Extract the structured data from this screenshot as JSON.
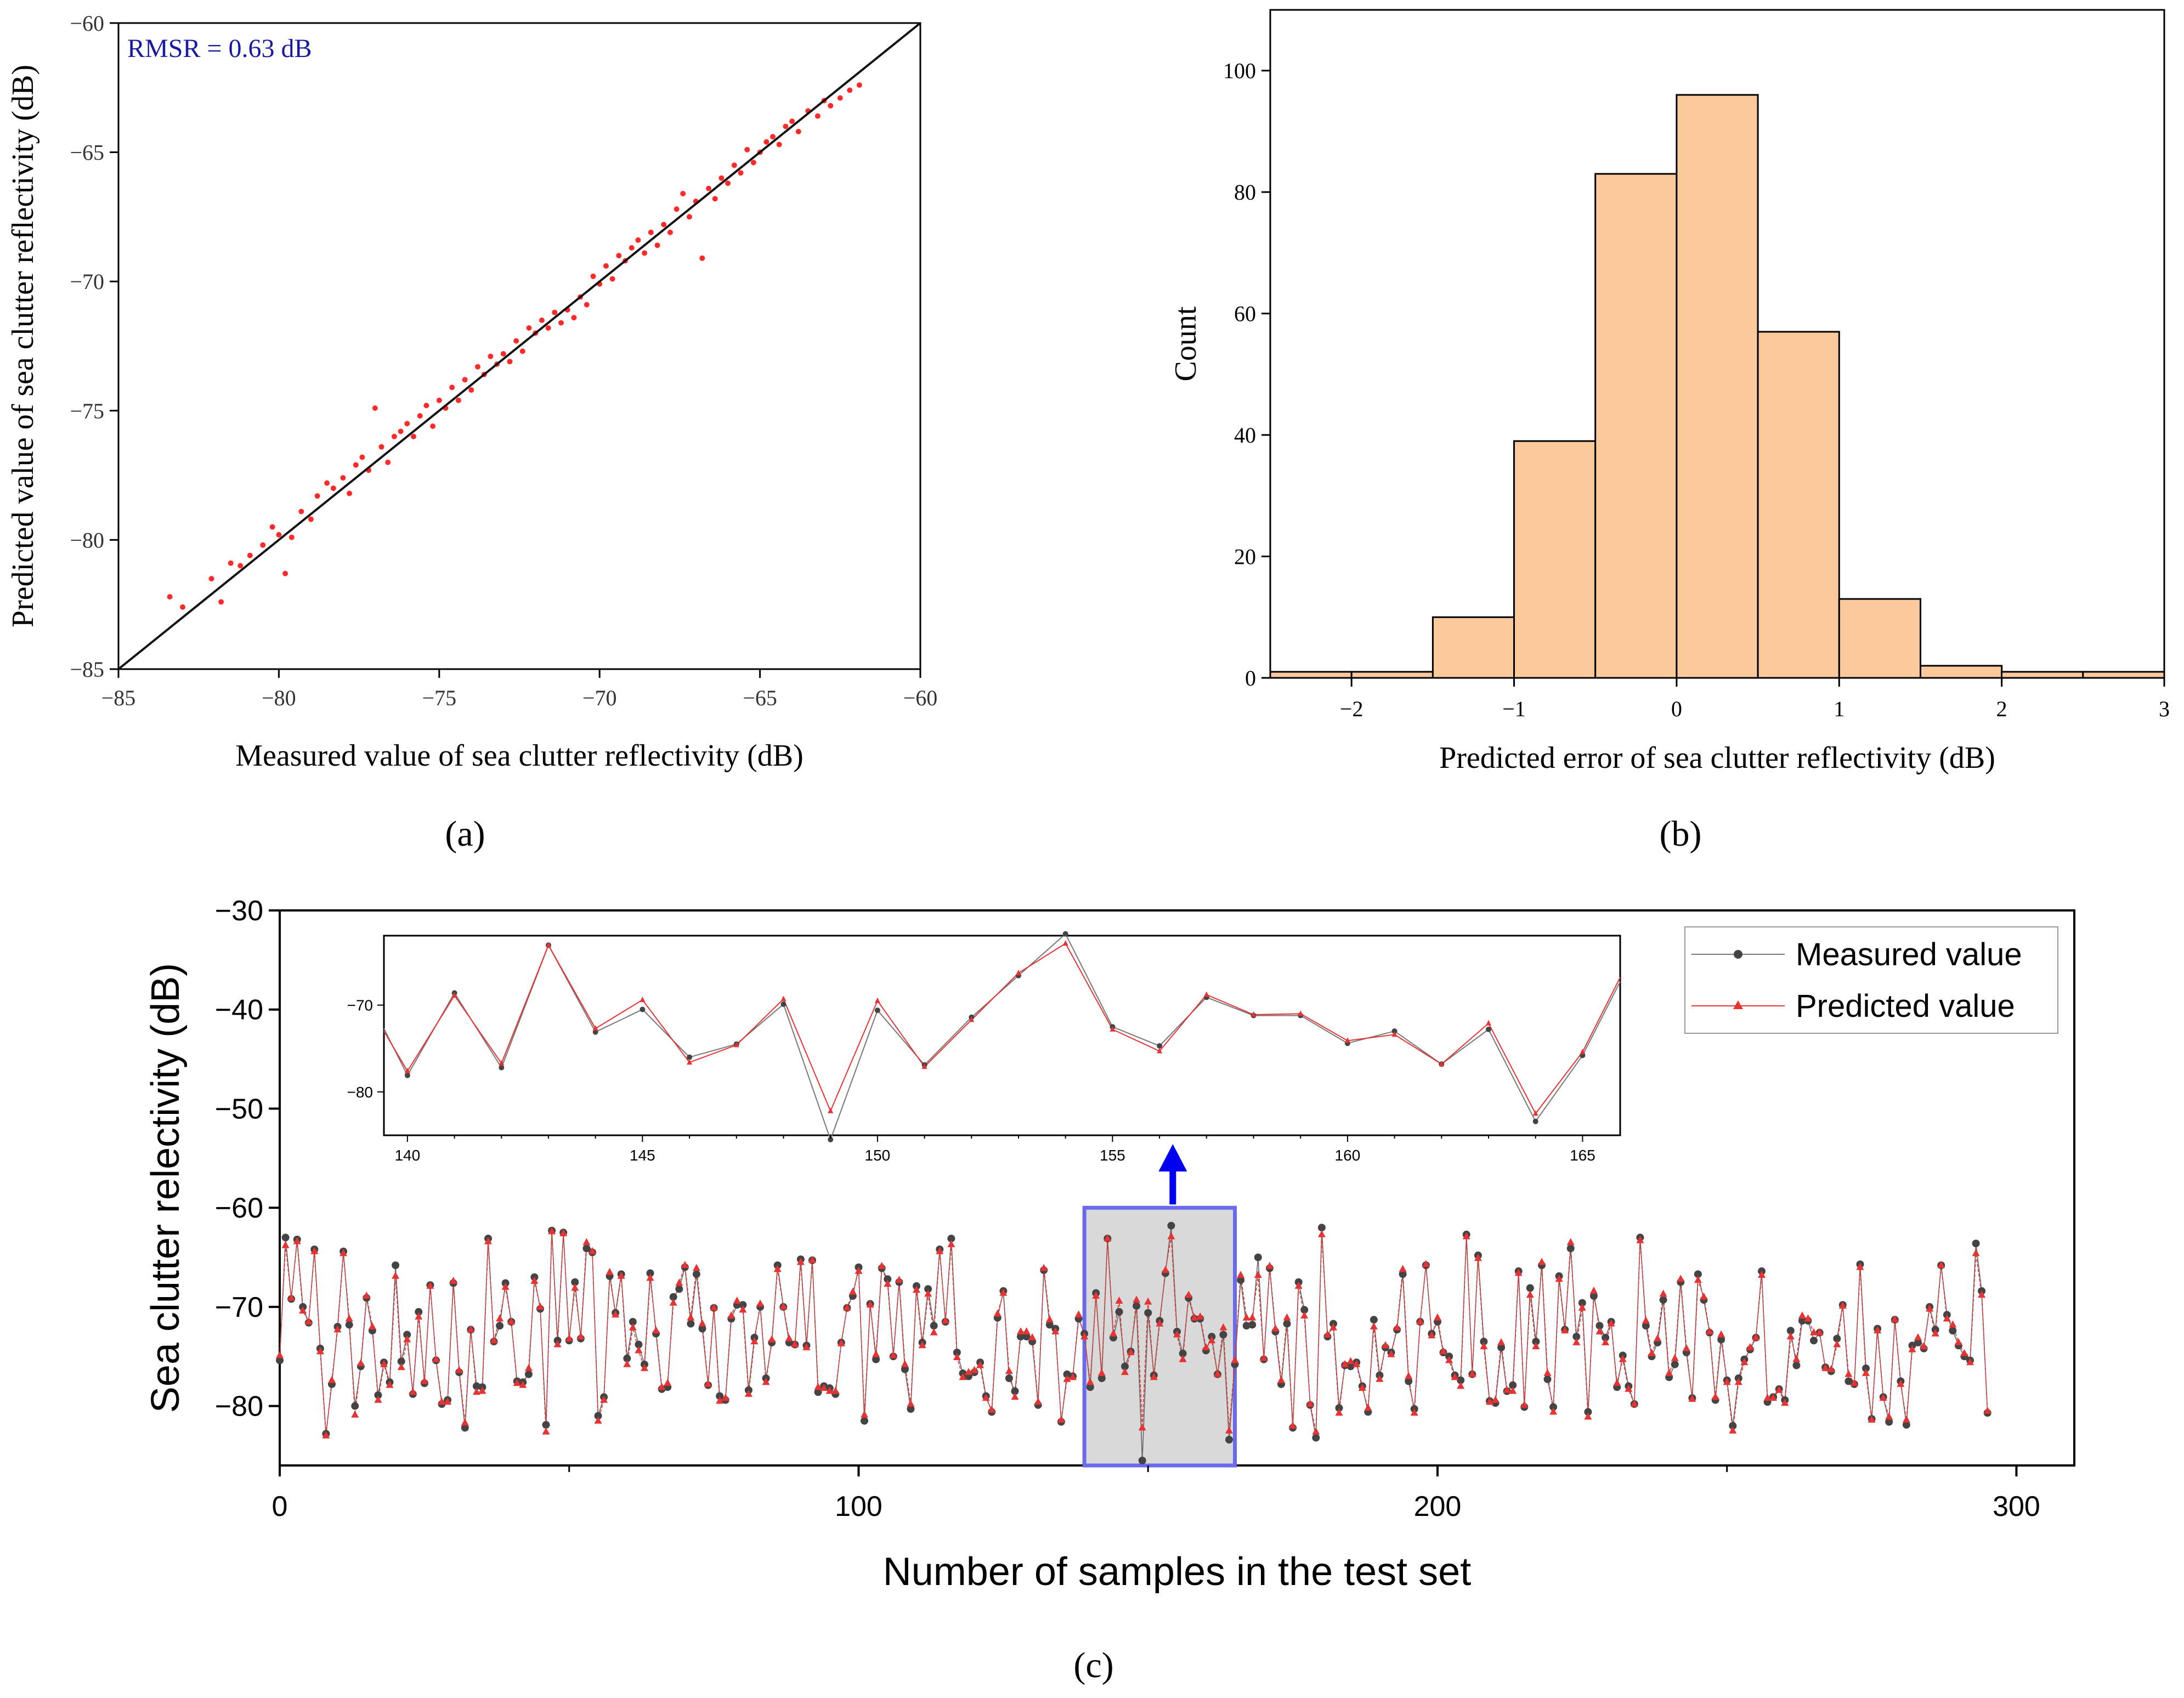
{
  "colors": {
    "scatter_point": "#ff2a2a",
    "fit_line": "#111111",
    "annotation": "#1a1aa0",
    "hist_fill": "#f9c89b",
    "hist_edge": "#000000",
    "measured": "#444444",
    "predicted": "#e63333",
    "highlight_box": "#6a6aee",
    "highlight_fill": "#d9d9d9",
    "arrow": "#0000ee"
  },
  "captions": [
    "(a)",
    "(b)",
    "(c)"
  ],
  "chart_data": [
    {
      "type": "scatter",
      "title": "",
      "xlabel": "Measured value of sea clutter reflectivity (dB)",
      "ylabel": "Predicted value of sea clutter reflectivity (dB)",
      "xlim": [
        -85,
        -60
      ],
      "ylim": [
        -85,
        -60
      ],
      "xticks": [
        -85,
        -80,
        -75,
        -70,
        -65,
        -60
      ],
      "yticks": [
        -85,
        -80,
        -75,
        -70,
        -65,
        -60
      ],
      "tick_labels": [
        "−85",
        "−80",
        "−75",
        "−70",
        "−65",
        "−60"
      ],
      "annotation": "RMSR = 0.63 dB",
      "reference_line": [
        [
          -85,
          -85
        ],
        [
          -60,
          -60
        ]
      ],
      "points": [
        [
          -83.4,
          -82.2
        ],
        [
          -83.0,
          -82.6
        ],
        [
          -82.1,
          -81.5
        ],
        [
          -81.8,
          -82.4
        ],
        [
          -81.5,
          -80.9
        ],
        [
          -81.2,
          -81.0
        ],
        [
          -80.9,
          -80.6
        ],
        [
          -80.5,
          -80.2
        ],
        [
          -80.2,
          -79.5
        ],
        [
          -80.0,
          -79.8
        ],
        [
          -79.8,
          -81.3
        ],
        [
          -79.6,
          -79.9
        ],
        [
          -79.3,
          -78.9
        ],
        [
          -79.0,
          -79.2
        ],
        [
          -78.8,
          -78.3
        ],
        [
          -78.5,
          -77.8
        ],
        [
          -78.3,
          -78.0
        ],
        [
          -78.0,
          -77.6
        ],
        [
          -77.8,
          -78.2
        ],
        [
          -77.6,
          -77.1
        ],
        [
          -77.4,
          -76.8
        ],
        [
          -77.2,
          -77.3
        ],
        [
          -77.0,
          -74.9
        ],
        [
          -76.8,
          -76.4
        ],
        [
          -76.6,
          -77.0
        ],
        [
          -76.4,
          -76.0
        ],
        [
          -76.2,
          -75.8
        ],
        [
          -76.0,
          -75.5
        ],
        [
          -75.8,
          -76.0
        ],
        [
          -75.6,
          -75.2
        ],
        [
          -75.4,
          -74.8
        ],
        [
          -75.2,
          -75.6
        ],
        [
          -75.0,
          -74.6
        ],
        [
          -74.8,
          -74.9
        ],
        [
          -74.6,
          -74.1
        ],
        [
          -74.4,
          -74.6
        ],
        [
          -74.2,
          -73.8
        ],
        [
          -74.0,
          -74.2
        ],
        [
          -73.8,
          -73.3
        ],
        [
          -73.6,
          -73.6
        ],
        [
          -73.4,
          -72.9
        ],
        [
          -73.2,
          -73.2
        ],
        [
          -73.0,
          -72.8
        ],
        [
          -72.8,
          -73.1
        ],
        [
          -72.6,
          -72.3
        ],
        [
          -72.4,
          -72.7
        ],
        [
          -72.2,
          -71.8
        ],
        [
          -72.0,
          -72.0
        ],
        [
          -71.8,
          -71.5
        ],
        [
          -71.6,
          -71.8
        ],
        [
          -71.4,
          -71.2
        ],
        [
          -71.2,
          -71.6
        ],
        [
          -71.0,
          -71.1
        ],
        [
          -70.8,
          -71.4
        ],
        [
          -70.6,
          -70.6
        ],
        [
          -70.4,
          -70.9
        ],
        [
          -70.2,
          -69.8
        ],
        [
          -70.0,
          -70.1
        ],
        [
          -69.8,
          -69.4
        ],
        [
          -69.6,
          -69.9
        ],
        [
          -69.4,
          -69.0
        ],
        [
          -69.2,
          -69.2
        ],
        [
          -69.0,
          -68.7
        ],
        [
          -68.8,
          -68.4
        ],
        [
          -68.6,
          -68.9
        ],
        [
          -68.4,
          -68.1
        ],
        [
          -68.2,
          -68.6
        ],
        [
          -68.0,
          -67.8
        ],
        [
          -67.8,
          -68.1
        ],
        [
          -67.6,
          -67.2
        ],
        [
          -67.4,
          -66.6
        ],
        [
          -67.2,
          -67.5
        ],
        [
          -67.0,
          -66.9
        ],
        [
          -66.8,
          -69.1
        ],
        [
          -66.6,
          -66.4
        ],
        [
          -66.4,
          -66.8
        ],
        [
          -66.2,
          -66.0
        ],
        [
          -66.0,
          -66.2
        ],
        [
          -65.8,
          -65.5
        ],
        [
          -65.6,
          -65.8
        ],
        [
          -65.4,
          -64.9
        ],
        [
          -65.2,
          -65.4
        ],
        [
          -65.0,
          -65.0
        ],
        [
          -64.8,
          -64.6
        ],
        [
          -64.6,
          -64.4
        ],
        [
          -64.4,
          -64.7
        ],
        [
          -64.2,
          -64.0
        ],
        [
          -64.0,
          -63.8
        ],
        [
          -63.8,
          -64.2
        ],
        [
          -63.5,
          -63.4
        ],
        [
          -63.2,
          -63.6
        ],
        [
          -63.0,
          -63.0
        ],
        [
          -62.8,
          -63.2
        ],
        [
          -62.5,
          -62.9
        ],
        [
          -62.2,
          -62.6
        ],
        [
          -61.9,
          -62.4
        ]
      ]
    },
    {
      "type": "bar",
      "title": "",
      "xlabel": "Predicted error of sea clutter reflectivity (dB)",
      "ylabel": "Count",
      "xlim": [
        -2.5,
        3
      ],
      "ylim": [
        0,
        110
      ],
      "xticks": [
        -2,
        -1,
        0,
        1,
        2,
        3
      ],
      "xtick_labels": [
        "−2",
        "−1",
        "0",
        "1",
        "2",
        "3"
      ],
      "yticks": [
        0,
        20,
        40,
        60,
        80,
        100
      ],
      "bin_edges": [
        -2.5,
        -2.0,
        -1.5,
        -1.0,
        -0.5,
        0.0,
        0.5,
        1.0,
        1.5,
        2.0,
        2.5,
        3.0
      ],
      "counts": [
        1,
        1,
        10,
        39,
        83,
        96,
        57,
        13,
        2,
        1,
        1
      ]
    },
    {
      "type": "line",
      "title": "",
      "xlabel": "Number of samples in the test set",
      "ylabel": "Sea clutter relectivity (dB)",
      "xlim": [
        0,
        310
      ],
      "ylim": [
        -86,
        -30
      ],
      "xticks": [
        0,
        100,
        200,
        300
      ],
      "yticks": [
        -80,
        -70,
        -60,
        -50,
        -40,
        -30
      ],
      "ytick_labels": [
        "−80",
        "−70",
        "−60",
        "−50",
        "−40",
        "−30"
      ],
      "legend_position": "top-right",
      "highlight_range": [
        139,
        165
      ],
      "highlight_ylim": [
        -86,
        -60
      ],
      "series": [
        {
          "name": "Measured value",
          "values": [
            -75.4,
            -63.0,
            -69.2,
            -63.2,
            -70.0,
            -71.6,
            -64.2,
            -74.2,
            -82.8,
            -77.8,
            -72.0,
            -64.4,
            -71.8,
            -80.0,
            -76.0,
            -69.1,
            -72.4,
            -78.9,
            -75.6,
            -77.6,
            -65.8,
            -75.5,
            -72.8,
            -78.8,
            -70.5,
            -77.7,
            -67.8,
            -75.4,
            -79.8,
            -79.4,
            -67.6,
            -76.6,
            -82.2,
            -72.3,
            -78.0,
            -78.1,
            -63.1,
            -73.5,
            -71.9,
            -67.6,
            -71.5,
            -77.5,
            -77.6,
            -76.8,
            -67.0,
            -70.2,
            -81.9,
            -62.3,
            -73.4,
            -62.5,
            -73.4,
            -67.5,
            -73.2,
            -64.1,
            -64.5,
            -81.0,
            -79.1,
            -66.9,
            -70.6,
            -66.7,
            -75.2,
            -71.5,
            -73.8,
            -75.8,
            -66.6,
            -72.7,
            -78.3,
            -78.1,
            -69.0,
            -68.2,
            -66.0,
            -71.7,
            -66.7,
            -72.2,
            -77.9,
            -70.1,
            -79.0,
            -79.4,
            -71.2,
            -69.8,
            -69.8,
            -78.4,
            -73.1,
            -70.0,
            -77.2,
            -73.6,
            -65.8,
            -70.0,
            -73.6,
            -73.8,
            -65.2,
            -73.9,
            -65.3,
            -78.6,
            -78.0,
            -78.2,
            -78.8,
            -73.6,
            -70.1,
            -68.9,
            -66.0,
            -81.5,
            -69.7,
            -75.3,
            -66.1,
            -67.2,
            -75.0,
            -67.5,
            -76.3,
            -80.3,
            -67.9,
            -73.6,
            -68.2,
            -71.9,
            -64.2,
            -71.5,
            -63.1,
            -74.6,
            -76.7,
            -77.0,
            -76.6,
            -75.6,
            -79.0,
            -80.6,
            -71.1,
            -68.4,
            -77.2,
            -78.5,
            -73.0,
            -73.0,
            -73.5,
            -79.9,
            -66.3,
            -71.8,
            -72.2,
            -81.6,
            -76.8,
            -77.0,
            -71.2,
            -72.7,
            -78.1,
            -68.6,
            -77.2,
            -63.1,
            -73.1,
            -70.5,
            -76.0,
            -74.5,
            -69.9,
            -85.5,
            -70.6,
            -76.9,
            -71.4,
            -66.6,
            -61.8,
            -72.5,
            -74.7,
            -69.1,
            -71.2,
            -71.2,
            -74.4,
            -73.0,
            -76.8,
            -72.8,
            -83.4,
            -75.8,
            -67.3,
            -71.9,
            -71.8,
            -65.0,
            -75.3,
            -66.1,
            -72.5,
            -77.8,
            -71.7,
            -82.2,
            -67.5,
            -70.3,
            -79.9,
            -83.2,
            -62.0,
            -73.0,
            -71.7,
            -80.2,
            -75.9,
            -76.0,
            -75.6,
            -78.0,
            -80.6,
            -71.3,
            -76.9,
            -74.1,
            -74.6,
            -72.3,
            -66.7,
            -77.5,
            -80.3,
            -71.5,
            -65.8,
            -72.7,
            -71.5,
            -74.6,
            -75.0,
            -76.9,
            -77.4,
            -62.7,
            -76.8,
            -64.8,
            -73.5,
            -79.5,
            -79.7,
            -74.1,
            -78.5,
            -77.9,
            -66.4,
            -80.1,
            -68.1,
            -73.5,
            -65.8,
            -77.3,
            -80.1,
            -66.9,
            -72.3,
            -64.1,
            -73.0,
            -69.6,
            -80.6,
            -68.9,
            -71.9,
            -73.1,
            -71.5,
            -78.1,
            -74.9,
            -78.0,
            -79.8,
            -63.0,
            -71.9,
            -75.0,
            -73.6,
            -69.3,
            -77.1,
            -75.8,
            -67.5,
            -74.6,
            -79.2,
            -66.7,
            -69.3,
            -72.6,
            -79.4,
            -73.3,
            -77.4,
            -82.0,
            -77.2,
            -75.3,
            -74.3,
            -73.1,
            -66.4,
            -79.6,
            -79.1,
            -78.3,
            -79.4,
            -72.4,
            -75.9,
            -71.4,
            -71.4,
            -73.4,
            -72.6,
            -76.1,
            -76.5,
            -73.2,
            -69.8,
            -77.5,
            -77.8,
            -65.7,
            -76.2,
            -81.3,
            -72.2,
            -79.1,
            -81.6,
            -71.3,
            -77.5,
            -81.9,
            -73.9,
            -73.6,
            -74.2,
            -70.0,
            -72.3,
            -65.8,
            -70.8,
            -72.4,
            -73.9,
            -75.0,
            -75.4,
            -63.6,
            -68.4,
            -80.7
          ]
        },
        {
          "name": "Predicted value",
          "values": [
            -74.9,
            -63.8,
            -69.1,
            -63.4,
            -70.4,
            -71.5,
            -64.4,
            -74.5,
            -83.0,
            -77.4,
            -72.3,
            -64.6,
            -71.2,
            -80.9,
            -75.7,
            -68.9,
            -72.0,
            -79.4,
            -75.8,
            -77.9,
            -66.9,
            -76.1,
            -73.3,
            -78.6,
            -71.0,
            -77.5,
            -67.9,
            -75.3,
            -79.6,
            -79.6,
            -67.4,
            -76.4,
            -81.7,
            -72.3,
            -78.6,
            -78.5,
            -63.4,
            -73.4,
            -71.2,
            -68.0,
            -71.5,
            -77.7,
            -77.9,
            -76.2,
            -67.4,
            -70.0,
            -82.6,
            -62.4,
            -73.8,
            -62.6,
            -73.2,
            -68.1,
            -73.0,
            -63.5,
            -64.4,
            -81.5,
            -79.4,
            -66.5,
            -70.8,
            -66.9,
            -75.8,
            -72.1,
            -74.4,
            -76.2,
            -67.1,
            -72.4,
            -78.1,
            -77.7,
            -69.6,
            -67.6,
            -65.8,
            -71.1,
            -66.1,
            -71.7,
            -77.8,
            -70.1,
            -79.5,
            -79.2,
            -70.9,
            -69.4,
            -70.3,
            -78.8,
            -73.5,
            -69.7,
            -77.6,
            -73.3,
            -66.2,
            -70.0,
            -73.2,
            -73.8,
            -65.5,
            -74.1,
            -65.3,
            -78.1,
            -78.2,
            -78.5,
            -78.5,
            -73.7,
            -70.1,
            -68.5,
            -66.4,
            -80.9,
            -69.8,
            -74.8,
            -65.9,
            -67.7,
            -74.9,
            -67.3,
            -75.8,
            -79.8,
            -68.3,
            -73.9,
            -68.7,
            -72.6,
            -64.4,
            -71.4,
            -63.7,
            -75.1,
            -77.1,
            -76.6,
            -76.4,
            -75.9,
            -79.2,
            -80.4,
            -70.7,
            -68.6,
            -76.5,
            -79.1,
            -72.5,
            -72.5,
            -73.1,
            -79.6,
            -66.1,
            -71.3,
            -72.5,
            -81.4,
            -77.3,
            -77.1,
            -70.8,
            -73.0,
            -77.6,
            -68.9,
            -76.7,
            -63.1,
            -72.7,
            -69.4,
            -76.6,
            -74.6,
            -69.3,
            -82.2,
            -69.5,
            -77.1,
            -71.7,
            -66.3,
            -62.9,
            -72.8,
            -75.3,
            -68.8,
            -71.1,
            -71.0,
            -74.1,
            -73.4,
            -76.8,
            -72.1,
            -82.5,
            -75.4,
            -66.8,
            -71.1,
            -71.1,
            -66.8,
            -75.2,
            -65.9,
            -72.2,
            -77.4,
            -71.1,
            -82.0,
            -67.9,
            -70.9,
            -79.8,
            -82.6,
            -62.7,
            -72.8,
            -72.1,
            -80.7,
            -75.8,
            -75.5,
            -75.8,
            -78.2,
            -80.2,
            -72.0,
            -77.3,
            -73.9,
            -74.8,
            -72.1,
            -66.2,
            -77.0,
            -80.7,
            -71.5,
            -65.7,
            -72.9,
            -71.1,
            -74.5,
            -75.4,
            -77.1,
            -78.0,
            -62.9,
            -76.8,
            -65.1,
            -74.0,
            -79.6,
            -79.4,
            -73.6,
            -78.4,
            -78.5,
            -66.6,
            -79.9,
            -68.8,
            -74.0,
            -65.5,
            -76.7,
            -80.6,
            -67.2,
            -72.4,
            -63.5,
            -73.6,
            -70.1,
            -81.1,
            -68.4,
            -72.5,
            -73.6,
            -71.7,
            -77.7,
            -75.3,
            -78.3,
            -79.8,
            -63.3,
            -71.4,
            -74.7,
            -73.2,
            -68.7,
            -76.7,
            -75.2,
            -67.2,
            -74.2,
            -79.3,
            -67.3,
            -69.0,
            -72.5,
            -79.1,
            -72.8,
            -77.6,
            -82.5,
            -77.6,
            -75.6,
            -74.1,
            -73.1,
            -66.8,
            -79.2,
            -79.2,
            -78.4,
            -79.7,
            -73.0,
            -75.3,
            -70.9,
            -71.2,
            -72.6,
            -72.6,
            -76.2,
            -76.3,
            -73.8,
            -69.9,
            -76.8,
            -77.7,
            -66.0,
            -76.7,
            -81.4,
            -72.4,
            -79.2,
            -81.1,
            -71.3,
            -77.8,
            -81.4,
            -74.3,
            -73.1,
            -74.0,
            -70.2,
            -72.7,
            -65.8,
            -71.2,
            -71.8,
            -73.6,
            -74.7,
            -75.6,
            -64.6,
            -68.8,
            -80.5
          ]
        }
      ],
      "inset": {
        "xlim": [
          139.5,
          165.8
        ],
        "ylim": [
          -85,
          -62
        ],
        "xticks": [
          140,
          145,
          150,
          155,
          160,
          165
        ],
        "yticks": [
          -70,
          -80
        ],
        "ytick_labels": [
          "−70",
          "−80"
        ]
      }
    }
  ]
}
